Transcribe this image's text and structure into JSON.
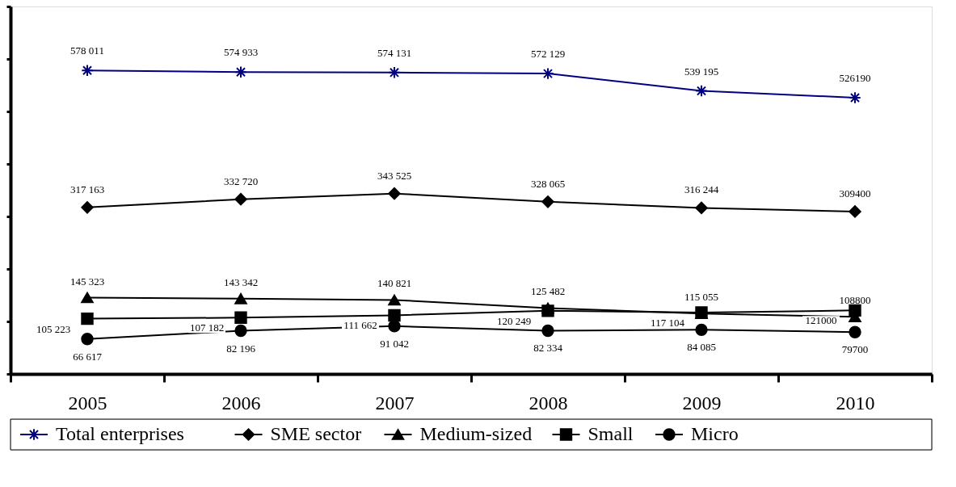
{
  "chart_data": {
    "type": "line",
    "categories": [
      "2005",
      "2006",
      "2007",
      "2008",
      "2009",
      "2010"
    ],
    "ylim": [
      0,
      700000
    ],
    "yticks": [
      {
        "value": 0,
        "label": null
      },
      {
        "value": 100000,
        "label": null
      },
      {
        "value": 200000,
        "label": null
      },
      {
        "value": 300000,
        "label": null
      },
      {
        "value": 400000,
        "label": null
      },
      {
        "value": 500000,
        "label": null
      },
      {
        "value": 600000,
        "label": null
      },
      {
        "value": 700000,
        "label": null
      }
    ],
    "tick_labels": "x",
    "grid": false,
    "legend": "bottom",
    "line_style": "solid",
    "series": [
      {
        "name": "Total enterprises",
        "color": "#000080",
        "marker": "cross",
        "values": [
          578011,
          574933,
          574131,
          572129,
          539195,
          526190
        ],
        "value_labels": [
          "578 011",
          "574 933",
          "574 131",
          "572 129",
          "539 195",
          "526190"
        ]
      },
      {
        "name": "SME sector",
        "color": "#000000",
        "marker": "diamond",
        "values": [
          317163,
          332720,
          343525,
          328065,
          316244,
          309400
        ],
        "value_labels": [
          "317 163",
          "332 720",
          "343 525",
          "328 065",
          "316 244",
          "309400"
        ]
      },
      {
        "name": "Medium-sized",
        "color": "#000000",
        "marker": "triangle",
        "values": [
          145323,
          143342,
          140821,
          125482,
          115055,
          108800
        ],
        "value_labels": [
          "145 323",
          "143 342",
          "140 821",
          "125 482",
          "115 055",
          "108800"
        ]
      },
      {
        "name": "Small",
        "color": "#000000",
        "marker": "square",
        "values": [
          105223,
          107182,
          111662,
          120249,
          117104,
          121000
        ],
        "value_labels": [
          "105 223",
          "107 182",
          "111 662",
          "120 249",
          "117 104",
          "121000"
        ]
      },
      {
        "name": "Micro",
        "color": "#000000",
        "marker": "circle",
        "values": [
          66617,
          82196,
          91042,
          82334,
          84085,
          79700
        ],
        "value_labels": [
          "66 617",
          "82 196",
          "91 042",
          "82 334",
          "84 085",
          "79700"
        ]
      }
    ]
  }
}
